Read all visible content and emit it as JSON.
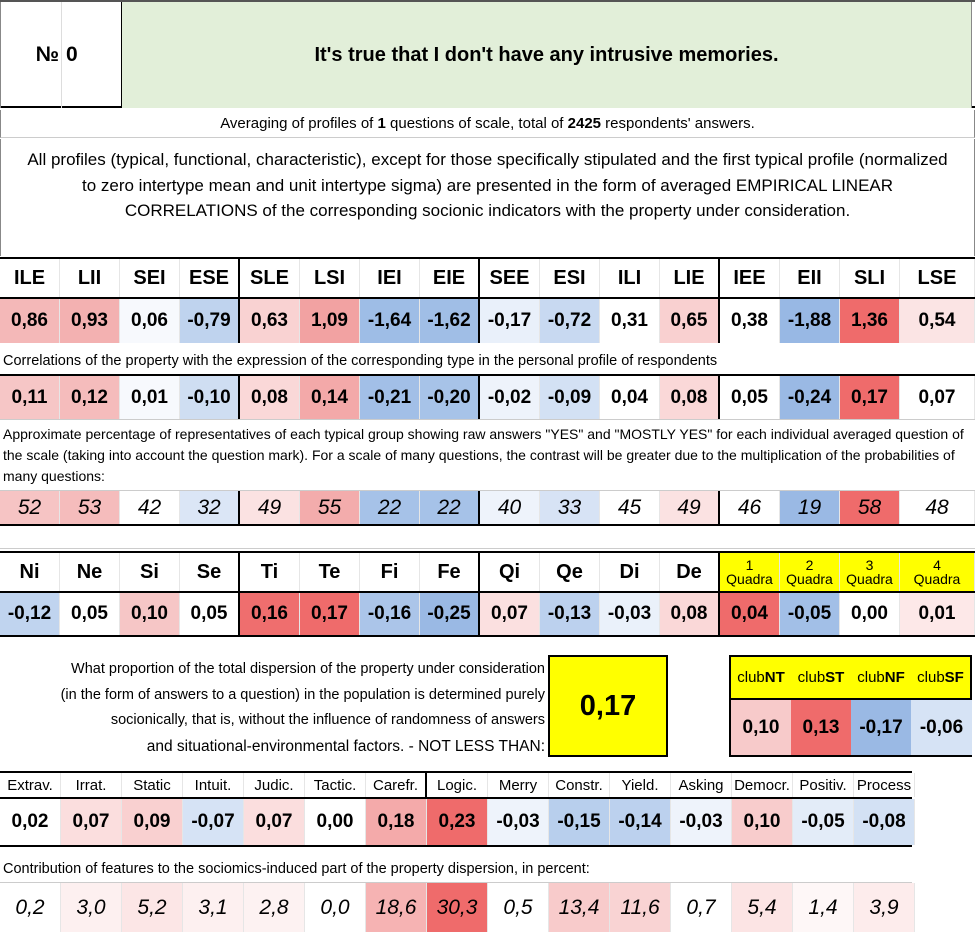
{
  "header": {
    "num_label": "№",
    "num_value": "0",
    "question": "It's true that I don't have any intrusive memories."
  },
  "summary": {
    "prefix": "Averaging of profiles of ",
    "questions": "1",
    "middle": " questions of scale, total of ",
    "respondents": "2425",
    "suffix": " respondents' answers."
  },
  "description": "All profiles (typical, functional, characteristic), except for those specifically stipulated and the first typical profile (normalized to zero intertype mean and unit intertype sigma) are presented in the form of averaged EMPIRICAL LINEAR CORRELATIONS of the corresponding socionic indicators with the property under consideration.",
  "types": {
    "headers": [
      "ILE",
      "LII",
      "SEI",
      "ESE",
      "SLE",
      "LSI",
      "IEI",
      "EIE",
      "SEE",
      "ESI",
      "ILI",
      "LIE",
      "IEE",
      "EII",
      "SLI",
      "LSE"
    ],
    "profile": [
      {
        "v": "0,86",
        "c": "#f4b8b8"
      },
      {
        "v": "0,93",
        "c": "#f3b1b1"
      },
      {
        "v": "0,06",
        "c": "#f7f9fd"
      },
      {
        "v": "-0,79",
        "c": "#bfd3ee"
      },
      {
        "v": "0,63",
        "c": "#f9d2d2"
      },
      {
        "v": "1,09",
        "c": "#f2a2a2"
      },
      {
        "v": "-1,64",
        "c": "#9ebde6"
      },
      {
        "v": "-1,62",
        "c": "#a0bee6"
      },
      {
        "v": "-0,17",
        "c": "#e9f0fa"
      },
      {
        "v": "-0,72",
        "c": "#c8d9f1"
      },
      {
        "v": "0,31",
        "c": "#ffffff"
      },
      {
        "v": "0,65",
        "c": "#f9d0d0"
      },
      {
        "v": "0,38",
        "c": "#ffffff"
      },
      {
        "v": "-1,88",
        "c": "#98b8e4"
      },
      {
        "v": "1,36",
        "c": "#ef6b6b"
      },
      {
        "v": "0,54",
        "c": "#fbe4e4"
      }
    ],
    "corr_note": "Correlations of the property with the expression of the corresponding type in the personal profile of respondents",
    "corr": [
      {
        "v": "0,11",
        "c": "#f6c6c6"
      },
      {
        "v": "0,12",
        "c": "#f5bcbc"
      },
      {
        "v": "0,01",
        "c": "#f7f9fd"
      },
      {
        "v": "-0,10",
        "c": "#cfdef2"
      },
      {
        "v": "0,08",
        "c": "#fad8d8"
      },
      {
        "v": "0,14",
        "c": "#f3a9a9"
      },
      {
        "v": "-0,21",
        "c": "#a2bfe7"
      },
      {
        "v": "-0,20",
        "c": "#a7c3e8"
      },
      {
        "v": "-0,02",
        "c": "#eef3fb"
      },
      {
        "v": "-0,09",
        "c": "#d3e1f4"
      },
      {
        "v": "0,04",
        "c": "#ffffff"
      },
      {
        "v": "0,08",
        "c": "#fad8d8"
      },
      {
        "v": "0,05",
        "c": "#ffffff"
      },
      {
        "v": "-0,24",
        "c": "#9ab9e4"
      },
      {
        "v": "0,17",
        "c": "#ef6b6b"
      },
      {
        "v": "0,07",
        "c": "#ffffff"
      }
    ],
    "pct_note": "Approximate percentage of representatives of each typical group showing raw answers \"YES\" and \"MOSTLY YES\" for each individual averaged question of the scale (taking into account the question mark). For a scale of many questions, the contrast will be greater due to the multiplication of the probabilities of many questions:",
    "pct": [
      {
        "v": "52",
        "c": "#f6c4c4"
      },
      {
        "v": "53",
        "c": "#f5bcbc"
      },
      {
        "v": "42",
        "c": "#ffffff"
      },
      {
        "v": "32",
        "c": "#dbe6f6"
      },
      {
        "v": "49",
        "c": "#fbe2e2"
      },
      {
        "v": "55",
        "c": "#f3acac"
      },
      {
        "v": "22",
        "c": "#a6c2e8"
      },
      {
        "v": "22",
        "c": "#a6c2e8"
      },
      {
        "v": "40",
        "c": "#eef3fb"
      },
      {
        "v": "33",
        "c": "#d7e3f5"
      },
      {
        "v": "45",
        "c": "#ffffff"
      },
      {
        "v": "49",
        "c": "#fbe2e2"
      },
      {
        "v": "46",
        "c": "#ffffff"
      },
      {
        "v": "19",
        "c": "#9ab9e4"
      },
      {
        "v": "58",
        "c": "#ef6b6b"
      },
      {
        "v": "48",
        "c": "#ffffff"
      }
    ]
  },
  "functions": {
    "headers": [
      "Ni",
      "Ne",
      "Si",
      "Se",
      "Ti",
      "Te",
      "Fi",
      "Fe",
      "Qi",
      "Qe",
      "Di",
      "De"
    ],
    "quadra_headers": [
      {
        "n": "1",
        "t": "Quadra"
      },
      {
        "n": "2",
        "t": "Quadra"
      },
      {
        "n": "3",
        "t": "Quadra"
      },
      {
        "n": "4",
        "t": "Quadra"
      }
    ],
    "values": [
      {
        "v": "-0,12",
        "c": "#c0d4ef"
      },
      {
        "v": "0,05",
        "c": "#ffffff"
      },
      {
        "v": "0,10",
        "c": "#f6c6c6"
      },
      {
        "v": "0,05",
        "c": "#ffffff"
      },
      {
        "v": "0,16",
        "c": "#ef6e6e"
      },
      {
        "v": "0,17",
        "c": "#ef6b6b"
      },
      {
        "v": "-0,16",
        "c": "#abc5e9"
      },
      {
        "v": "-0,25",
        "c": "#9ab9e4"
      },
      {
        "v": "0,07",
        "c": "#fbe0e0"
      },
      {
        "v": "-0,13",
        "c": "#bcd1ee"
      },
      {
        "v": "-0,03",
        "c": "#eaf1fa"
      },
      {
        "v": "0,08",
        "c": "#fad8d8"
      },
      {
        "v": "0,04",
        "c": "#ef6b6b"
      },
      {
        "v": "-0,05",
        "c": "#a2bfe7"
      },
      {
        "v": "0,00",
        "c": "#ffffff"
      },
      {
        "v": "0,01",
        "c": "#fde8e8"
      }
    ]
  },
  "dispersion": {
    "text": "What proportion of the total dispersion of the property under consideration (in the form of answers to a question) in the population is determined purely socionically, that is, without the influence of randomness of answers",
    "text_last": "and situational-environmental factors. - NOT LESS THAN:",
    "value": "0,17"
  },
  "clubs": {
    "labels": [
      {
        "pre": "club",
        "b": "NT"
      },
      {
        "pre": "club",
        "b": "ST"
      },
      {
        "pre": "club",
        "b": "NF"
      },
      {
        "pre": "club",
        "b": "SF"
      }
    ],
    "values": [
      {
        "v": "0,10",
        "c": "#f7caca"
      },
      {
        "v": "0,13",
        "c": "#ef6b6b"
      },
      {
        "v": "-0,17",
        "c": "#9ab9e4"
      },
      {
        "v": "-0,06",
        "c": "#d6e3f5"
      }
    ]
  },
  "features": {
    "headers": [
      "Extrav.",
      "Irrat.",
      "Static",
      "Intuit.",
      "Judic.",
      "Tactic.",
      "Carefr.",
      "Logic.",
      "Merry",
      "Constr.",
      "Yield.",
      "Asking",
      "Democr.",
      "Positiv.",
      "Process"
    ],
    "values": [
      {
        "v": "0,02",
        "c": "#ffffff"
      },
      {
        "v": "0,07",
        "c": "#fbdede"
      },
      {
        "v": "0,09",
        "c": "#f9d0d0"
      },
      {
        "v": "-0,07",
        "c": "#d6e3f5"
      },
      {
        "v": "0,07",
        "c": "#fbdede"
      },
      {
        "v": "0,00",
        "c": "#ffffff"
      },
      {
        "v": "0,18",
        "c": "#f4aaaa"
      },
      {
        "v": "0,23",
        "c": "#ef6b6b"
      },
      {
        "v": "-0,03",
        "c": "#eef3fb"
      },
      {
        "v": "-0,15",
        "c": "#b8cfed"
      },
      {
        "v": "-0,14",
        "c": "#bcd1ee"
      },
      {
        "v": "-0,03",
        "c": "#eef3fb"
      },
      {
        "v": "0,10",
        "c": "#f8cccc"
      },
      {
        "v": "-0,05",
        "c": "#e3ecf8"
      },
      {
        "v": "-0,08",
        "c": "#d3e1f4"
      }
    ],
    "contrib_note": "Contribution of features to the sociomics-induced part of the property dispersion, in percent:",
    "contrib": [
      {
        "v": "0,2",
        "c": "#ffffff"
      },
      {
        "v": "3,0",
        "c": "#fdf0f0"
      },
      {
        "v": "5,2",
        "c": "#fce6e6"
      },
      {
        "v": "3,1",
        "c": "#fdf0f0"
      },
      {
        "v": "2,8",
        "c": "#fdf2f2"
      },
      {
        "v": "0,0",
        "c": "#ffffff"
      },
      {
        "v": "18,6",
        "c": "#f6b3b3"
      },
      {
        "v": "30,3",
        "c": "#ef6b6b"
      },
      {
        "v": "0,5",
        "c": "#ffffff"
      },
      {
        "v": "13,4",
        "c": "#f8cbcb"
      },
      {
        "v": "11,6",
        "c": "#f9d3d3"
      },
      {
        "v": "0,7",
        "c": "#ffffff"
      },
      {
        "v": "5,4",
        "c": "#fce4e4"
      },
      {
        "v": "1,4",
        "c": "#fef7f7"
      },
      {
        "v": "3,9",
        "c": "#fdecec"
      }
    ]
  }
}
